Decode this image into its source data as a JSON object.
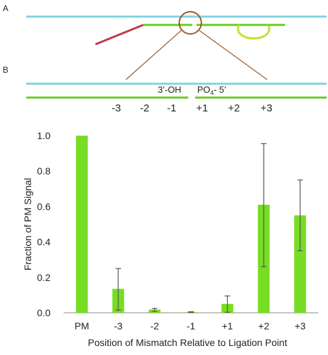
{
  "panel_a": {
    "letter": "A"
  },
  "panel_b": {
    "letter": "B",
    "left_end_label": "3’-OH",
    "right_end_label_prefix": "PO",
    "right_end_label_sub": "4",
    "right_end_label_suffix": "- 5’",
    "positions": [
      "-3",
      "-2",
      "-1",
      "+1",
      "+2",
      "+3"
    ]
  },
  "colors": {
    "template_strand": "#7fd3e0",
    "probe_strand": "#66cc22",
    "tail_red": "#c0394a",
    "hairpin_yellow": "#ccdd33",
    "circle_brown": "#9b5a2a",
    "bar_fill": "#77dd22",
    "error_bar": "#555555",
    "axis": "#888888"
  },
  "chart_data": {
    "type": "bar",
    "categories": [
      "PM",
      "-3",
      "-2",
      "-1",
      "+1",
      "+2",
      "+3"
    ],
    "values": [
      1.0,
      0.135,
      0.018,
      0.004,
      0.05,
      0.61,
      0.55
    ],
    "error_low": [
      1.0,
      0.015,
      0.008,
      0.002,
      0.003,
      0.26,
      0.35
    ],
    "error_high": [
      1.0,
      0.25,
      0.025,
      0.006,
      0.095,
      0.955,
      0.75
    ],
    "yticks": [
      "0.0",
      "0.2",
      "0.4",
      "0.6",
      "0.8",
      "1.0"
    ],
    "ylim": [
      0,
      1.0
    ],
    "ylabel": "Fraction of PM Signal",
    "xlabel": "Position of Mismatch Relative to Ligation Point",
    "grid": false,
    "legend": "none"
  }
}
